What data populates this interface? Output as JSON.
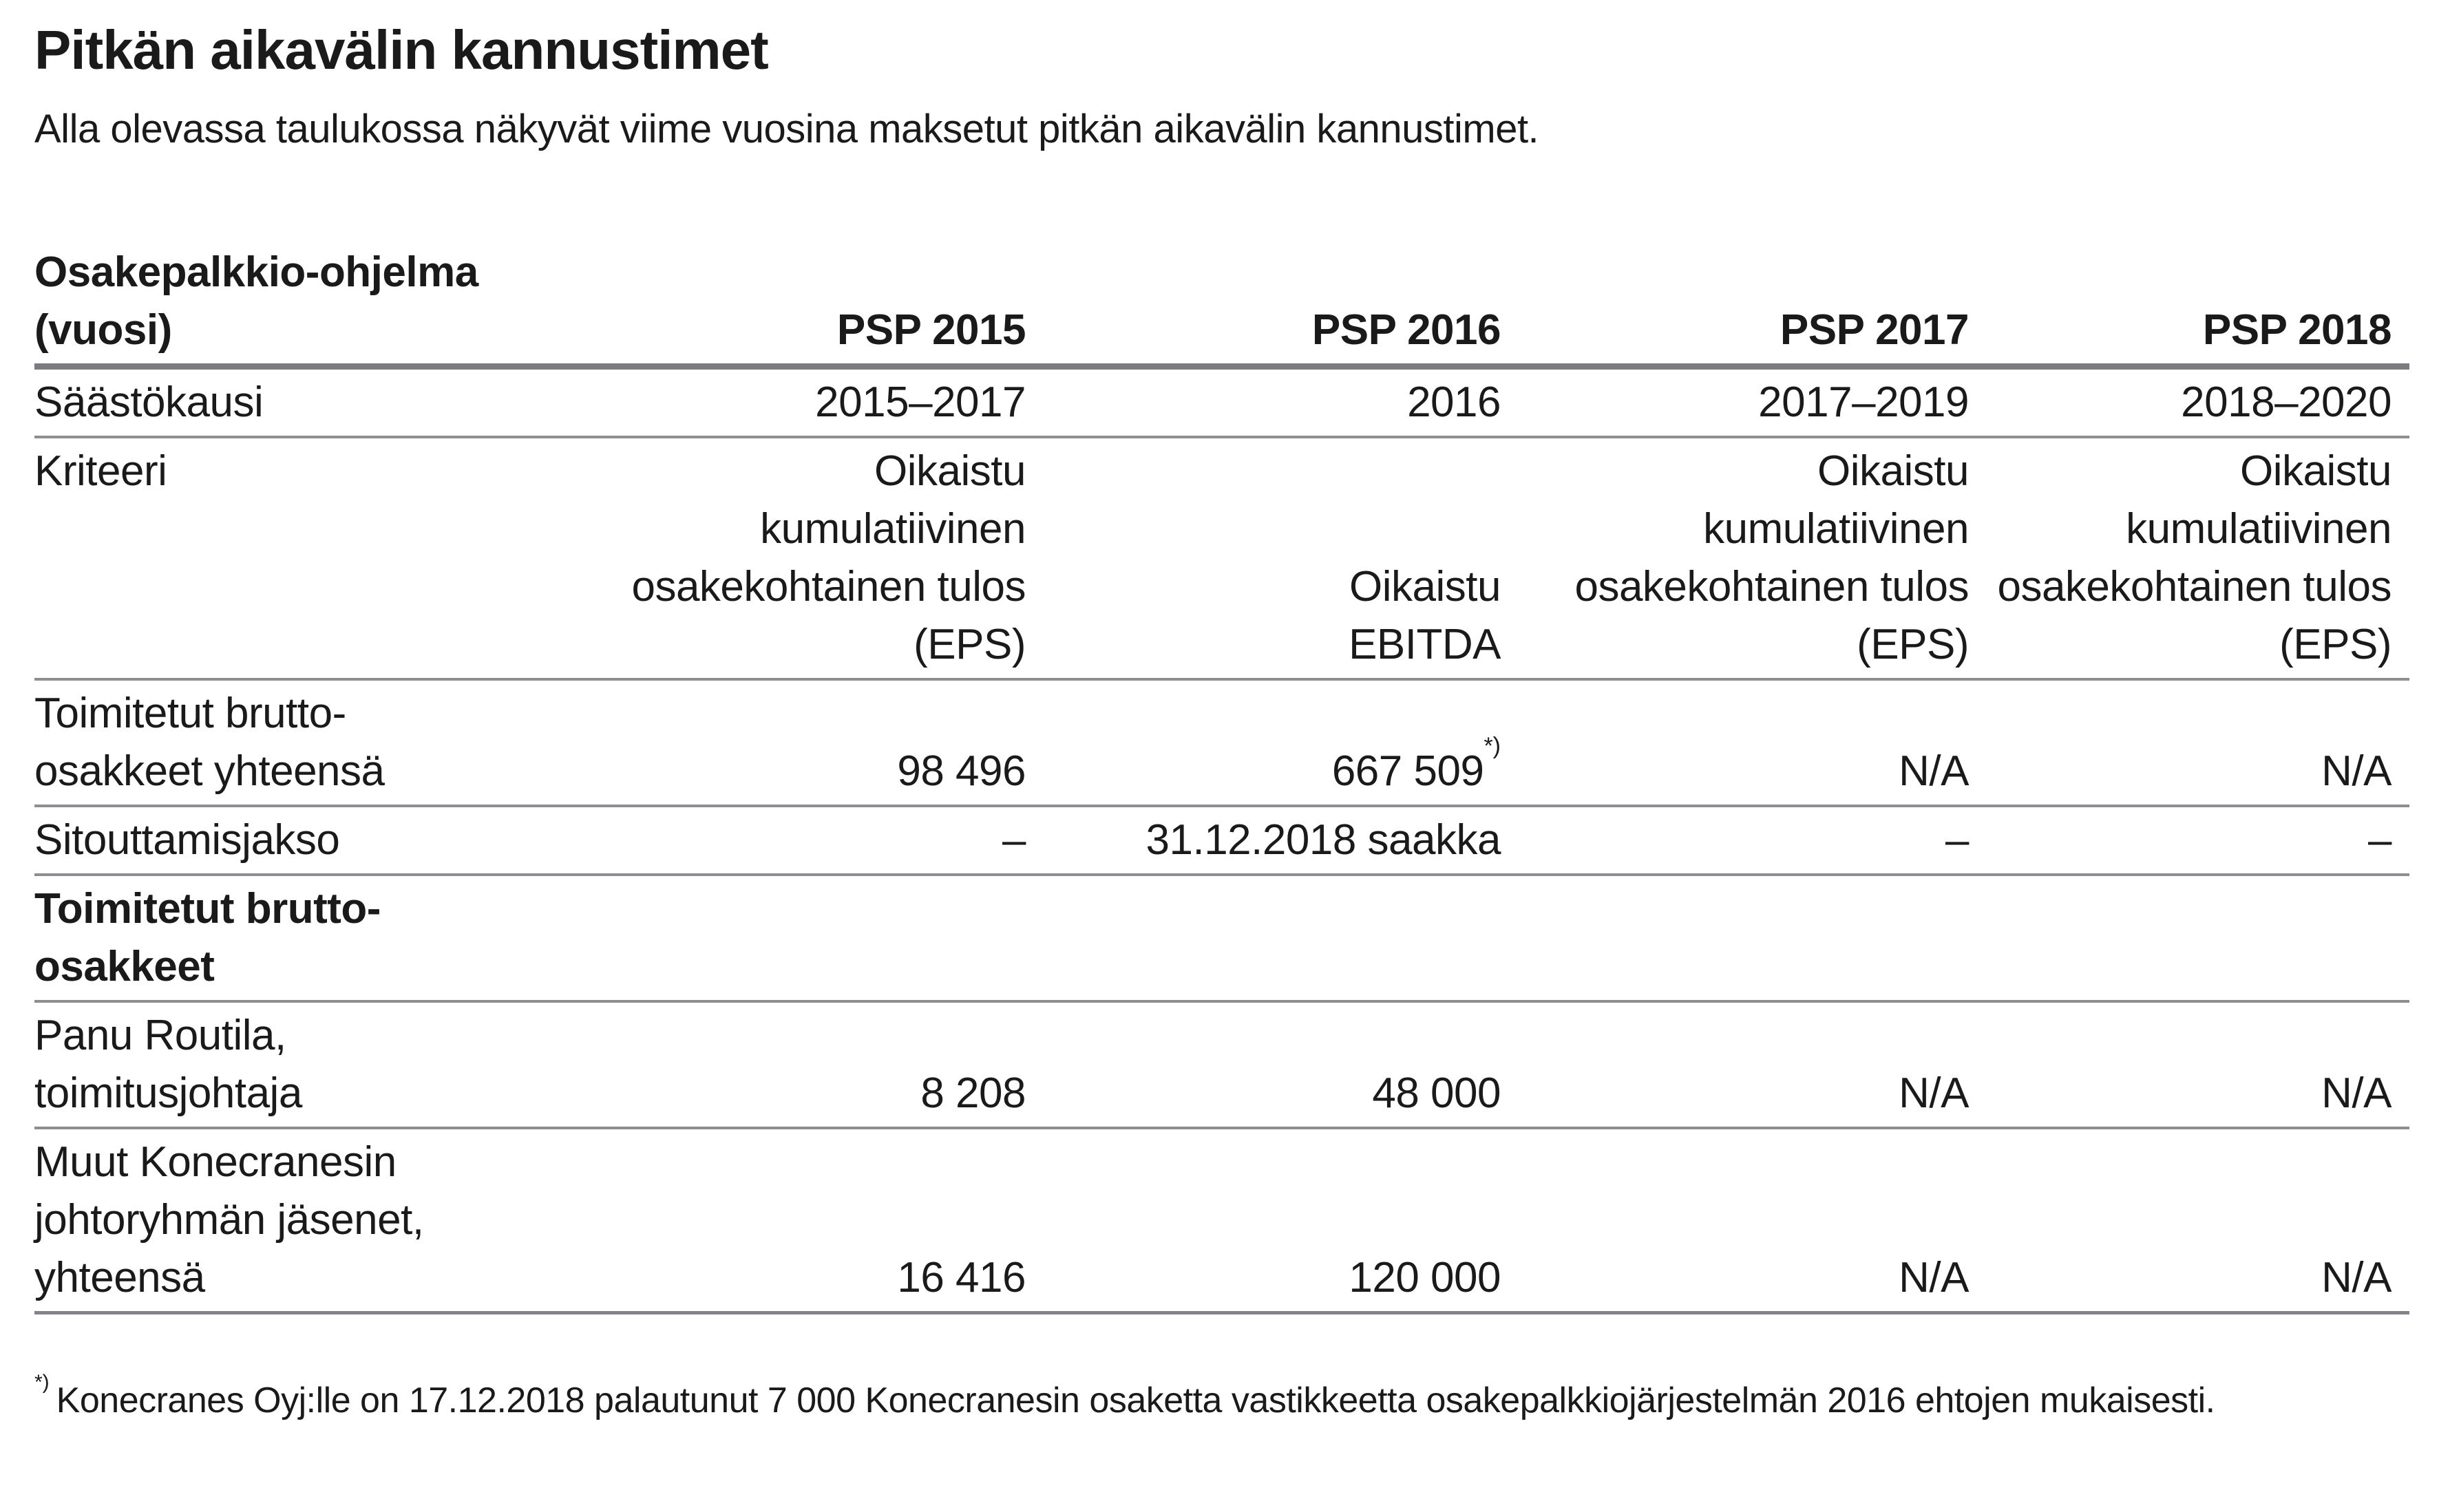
{
  "page": {
    "title": "Pitkän aikavälin kannustimet",
    "subtitle": "Alla olevassa taulukossa näkyvät viime vuosina maksetut pitkän aikavälin kannustimet."
  },
  "colors": {
    "text": "#1a1a1a",
    "header_rule": "#7b7b80",
    "row_rule": "#8d8d92"
  },
  "table": {
    "header": {
      "label_lines": [
        "Osakepalkkio-ohjelma",
        "(vuosi)"
      ],
      "columns": [
        "PSP 2015",
        "PSP 2016",
        "PSP 2017",
        "PSP 2018"
      ]
    },
    "rows": [
      {
        "name": "saastokausi",
        "label": {
          "lines": [
            "Säästökausi"
          ],
          "bold": false
        },
        "cells": [
          {
            "lines": [
              "2015–2017"
            ]
          },
          {
            "lines": [
              "2016"
            ]
          },
          {
            "lines": [
              "2017–2019"
            ]
          },
          {
            "lines": [
              "2018–2020"
            ]
          }
        ]
      },
      {
        "name": "kriteeri",
        "label": {
          "lines": [
            "Kriteeri"
          ],
          "bold": false
        },
        "cells": [
          {
            "lines": [
              "Oikaistu",
              "kumulatiivinen",
              "osakekohtainen tulos",
              "(EPS)"
            ]
          },
          {
            "lines": [
              "Oikaistu",
              "EBITDA"
            ]
          },
          {
            "lines": [
              "Oikaistu",
              "kumulatiivinen",
              "osakekohtainen tulos",
              "(EPS)"
            ]
          },
          {
            "lines": [
              "Oikaistu",
              "kumulatiivinen",
              "osakekohtainen tulos",
              "(EPS)"
            ]
          }
        ]
      },
      {
        "name": "toimitetut-brutto-osakkeet-yhteensa",
        "label": {
          "lines": [
            "Toimitetut brutto-",
            "osakkeet yhteensä"
          ],
          "bold": false
        },
        "cells": [
          {
            "lines": [
              "98 496"
            ]
          },
          {
            "lines": [
              "667 509"
            ],
            "sup": "*)"
          },
          {
            "lines": [
              "N/A"
            ]
          },
          {
            "lines": [
              "N/A"
            ]
          }
        ]
      },
      {
        "name": "sitouttamisjakso",
        "label": {
          "lines": [
            "Sitouttamisjakso"
          ],
          "bold": false
        },
        "cells": [
          {
            "lines": [
              "–"
            ]
          },
          {
            "lines": [
              "31.12.2018 saakka"
            ]
          },
          {
            "lines": [
              "–"
            ]
          },
          {
            "lines": [
              "–"
            ]
          }
        ]
      },
      {
        "name": "toimitetut-brutto-osakkeet-section",
        "label": {
          "lines": [
            "Toimitetut brutto-",
            "osakkeet"
          ],
          "bold": true
        },
        "cells": [
          {
            "lines": []
          },
          {
            "lines": []
          },
          {
            "lines": []
          },
          {
            "lines": []
          }
        ]
      },
      {
        "name": "panu-routila-toimitusjohtaja",
        "label": {
          "lines": [
            "Panu Routila,",
            "toimitusjohtaja"
          ],
          "bold": false
        },
        "cells": [
          {
            "lines": [
              "8 208"
            ]
          },
          {
            "lines": [
              "48 000"
            ]
          },
          {
            "lines": [
              "N/A"
            ]
          },
          {
            "lines": [
              "N/A"
            ]
          }
        ]
      },
      {
        "name": "muut-konecranesin-johtoryhman-jasenet",
        "label": {
          "lines": [
            "Muut Konecranesin",
            "johtoryhmän jäsenet,",
            "yhteensä"
          ],
          "bold": false
        },
        "cells": [
          {
            "lines": [
              "16 416"
            ]
          },
          {
            "lines": [
              "120 000"
            ]
          },
          {
            "lines": [
              "N/A"
            ]
          },
          {
            "lines": [
              "N/A"
            ]
          }
        ]
      }
    ]
  },
  "footnote": {
    "marker": "*)",
    "text": "Konecranes Oyj:lle on 17.12.2018 palautunut 7 000 Konecranesin osaketta vastikkeetta osakepalkkiojärjestelmän 2016 ehtojen mukaisesti."
  }
}
